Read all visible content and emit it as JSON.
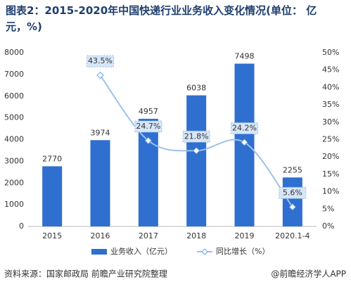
{
  "chart_data": {
    "type": "bar",
    "title": "图表2：2015-2020年中国快递行业业务收入变化情况(单位： 亿元，%)",
    "categories": [
      "2015",
      "2016",
      "2017",
      "2018",
      "2019",
      "2020.1-4"
    ],
    "series": [
      {
        "name": "业务收入（亿元）",
        "color": "#2f6fd0",
        "type": "bar",
        "values": [
          2770,
          3974,
          4957,
          6038,
          7498,
          2255
        ]
      },
      {
        "name": "同比增长（%）",
        "color": "#9cc3ea",
        "type": "line",
        "axis": "y2",
        "values": [
          null,
          43.5,
          24.7,
          21.8,
          24.2,
          5.6
        ],
        "value_labels": [
          null,
          "43.5%",
          "24.7%",
          "21.8%",
          "24.2%",
          "5.6%"
        ]
      }
    ],
    "ylim": [
      0,
      8000
    ],
    "yticks": [
      0,
      1000,
      2000,
      3000,
      4000,
      5000,
      6000,
      7000,
      8000
    ],
    "y2lim": [
      0,
      50
    ],
    "y2ticks": [
      {
        "value": 0,
        "label": "0%"
      },
      {
        "value": 5,
        "label": "5%"
      },
      {
        "value": 10,
        "label": "10%"
      },
      {
        "value": 15,
        "label": "15%"
      },
      {
        "value": 20,
        "label": "20%"
      },
      {
        "value": 25,
        "label": "25%"
      },
      {
        "value": 30,
        "label": "30%"
      },
      {
        "value": 35,
        "label": "35%"
      },
      {
        "value": 40,
        "label": "40%"
      },
      {
        "value": 45,
        "label": "45%"
      },
      {
        "value": 50,
        "label": "50%"
      }
    ],
    "source": "资料来源：国家邮政局 前瞻产业研究院整理",
    "credit": "@前瞻经济学人APP"
  }
}
